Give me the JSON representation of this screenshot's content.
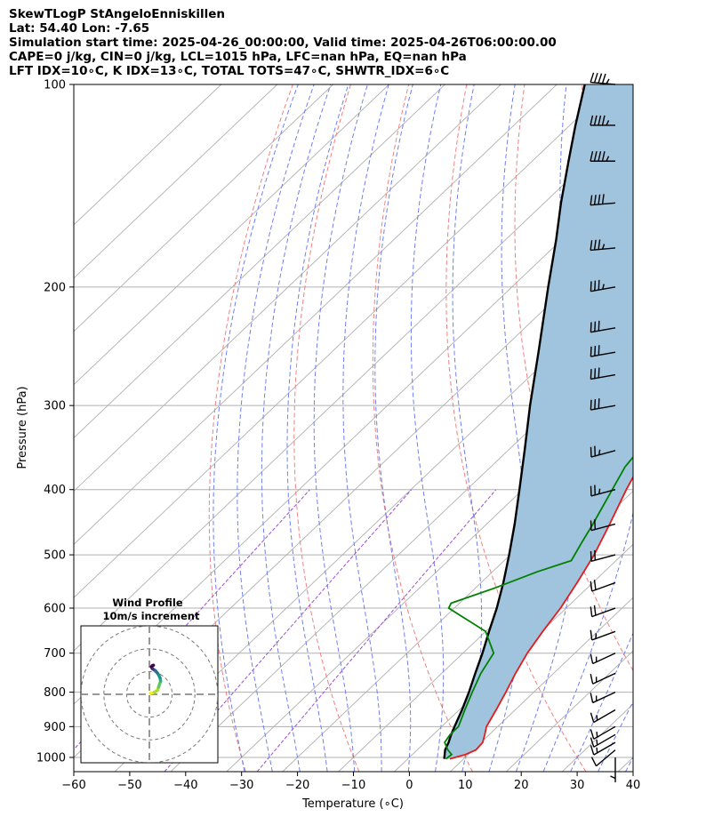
{
  "header": {
    "line1": "SkewTLogP StAngeloEnniskillen",
    "line2": "Lat: 54.40   Lon: -7.65",
    "line3": "Simulation start time: 2025-04-26_00:00:00, Valid time: 2025-04-26T06:00:00.00",
    "line4": "CAPE=0 j/kg, CIN=0 j/kg, LCL=1015 hPa, LFC=nan hPa, EQ=nan hPa",
    "line5": "LFT IDX=10∘C, K IDX=13∘C, TOTAL TOTS=47∘C, SHWTR_IDX=6∘C"
  },
  "chart_data": {
    "type": "line",
    "subtype": "skew-t log-p",
    "xlabel": "Temperature (∘C)",
    "ylabel": "Pressure (hPa)",
    "xlim": [
      -60,
      40
    ],
    "ylim": [
      1050,
      100
    ],
    "y_scale": "log",
    "x_ticks": [
      -60,
      -50,
      -40,
      -30,
      -20,
      -10,
      0,
      10,
      20,
      30,
      40
    ],
    "x_tick_labels": [
      "−60",
      "−50",
      "−40",
      "−30",
      "−20",
      "−10",
      "0",
      "10",
      "20",
      "30",
      "40"
    ],
    "y_ticks": [
      1000,
      900,
      800,
      700,
      600,
      500,
      400,
      300,
      200,
      100
    ],
    "grid": true,
    "colors": {
      "temperature": "#e41a1c",
      "dewpoint": "#008000",
      "parcel": "#000000",
      "fill": "#a0c4de",
      "dry_adiabat": "#f08080",
      "moist_adiabat": "#6f7ff0",
      "mixing_ratio": "#9b4fcf",
      "isotherm": "#b0b0b0"
    },
    "temperature": {
      "pressure": [
        1005,
        990,
        975,
        950,
        925,
        900,
        850,
        800,
        750,
        700,
        650,
        600,
        550,
        500,
        450,
        400,
        350,
        300,
        270,
        250,
        230,
        210,
        190,
        170,
        160,
        150,
        140,
        130,
        120,
        110,
        100
      ],
      "temp": [
        7.5,
        9.5,
        10.5,
        10.3,
        9.2,
        8.0,
        6.6,
        5.0,
        3.2,
        1.5,
        0.2,
        -1.0,
        -2.8,
        -5.0,
        -8.0,
        -11.5,
        -15.0,
        -18.0,
        -19.5,
        -20.5,
        -21.5,
        -23.0,
        -26.0,
        -31.0,
        -33.5,
        -36.0,
        -39.0,
        -41.5,
        -44.5,
        -47.5,
        -51.5
      ]
    },
    "dewpoint": {
      "pressure": [
        1005,
        990,
        975,
        950,
        925,
        900,
        850,
        800,
        750,
        700,
        650,
        600,
        590,
        560,
        530,
        510,
        480,
        450,
        400,
        370,
        340,
        310,
        280,
        250,
        220,
        200,
        185,
        175,
        165,
        100
      ],
      "temp": [
        6.8,
        7.0,
        5.5,
        3.5,
        3.0,
        3.0,
        1.0,
        -1.0,
        -3.0,
        -4.5,
        -10.0,
        -21.0,
        -21.5,
        -16.5,
        -12.0,
        -8.0,
        -9.5,
        -11.0,
        -14.0,
        -16.0,
        -17.0,
        -18.0,
        -19.0,
        -20.0,
        -21.0,
        -22.5,
        -24.0,
        -25.5,
        -27.0,
        -50.0
      ]
    },
    "parcel": {
      "pressure": [
        1005,
        975,
        950,
        925,
        900,
        850,
        800,
        750,
        700,
        650,
        600,
        550,
        500,
        450,
        400,
        350,
        300,
        250,
        200,
        170,
        150,
        130,
        115,
        100
      ],
      "temp": [
        6.5,
        5.0,
        4.2,
        3.2,
        2.3,
        0.5,
        -1.6,
        -4.0,
        -6.5,
        -9.4,
        -12.4,
        -16.0,
        -20.2,
        -25.0,
        -30.6,
        -37.0,
        -44.5,
        -53.0,
        -63.5,
        -71.0,
        -77.0,
        -83.5,
        -89.0,
        -95.0
      ]
    },
    "wind_barbs": {
      "pressure": [
        1000,
        975,
        950,
        925,
        900,
        850,
        800,
        750,
        700,
        650,
        600,
        550,
        500,
        450,
        400,
        350,
        300,
        270,
        250,
        230,
        200,
        175,
        150,
        130,
        115,
        100
      ],
      "speed_kt": [
        5,
        10,
        15,
        15,
        15,
        15,
        15,
        15,
        15,
        15,
        20,
        20,
        20,
        20,
        25,
        25,
        30,
        30,
        30,
        30,
        35,
        35,
        40,
        45,
        45,
        45
      ],
      "direction_deg": [
        180,
        230,
        240,
        240,
        240,
        240,
        245,
        245,
        245,
        250,
        250,
        250,
        255,
        255,
        255,
        255,
        260,
        260,
        260,
        260,
        260,
        265,
        265,
        270,
        270,
        275
      ]
    },
    "wind_profile_inset": {
      "title": "Wind Profile",
      "subtitle": "10m/s increment",
      "u": [
        0.5,
        2.5,
        4.0,
        4.5,
        5.0,
        5.5,
        5.2,
        4.5,
        3.8,
        3.0,
        2.2,
        1.5,
        1.2,
        1.0,
        1.5,
        2.0
      ],
      "v": [
        0.5,
        1.0,
        2.0,
        3.5,
        5.0,
        6.5,
        8.0,
        9.5,
        10.5,
        11.5,
        12.0,
        12.5,
        13.0,
        13.5,
        14.0,
        14.2
      ]
    }
  }
}
